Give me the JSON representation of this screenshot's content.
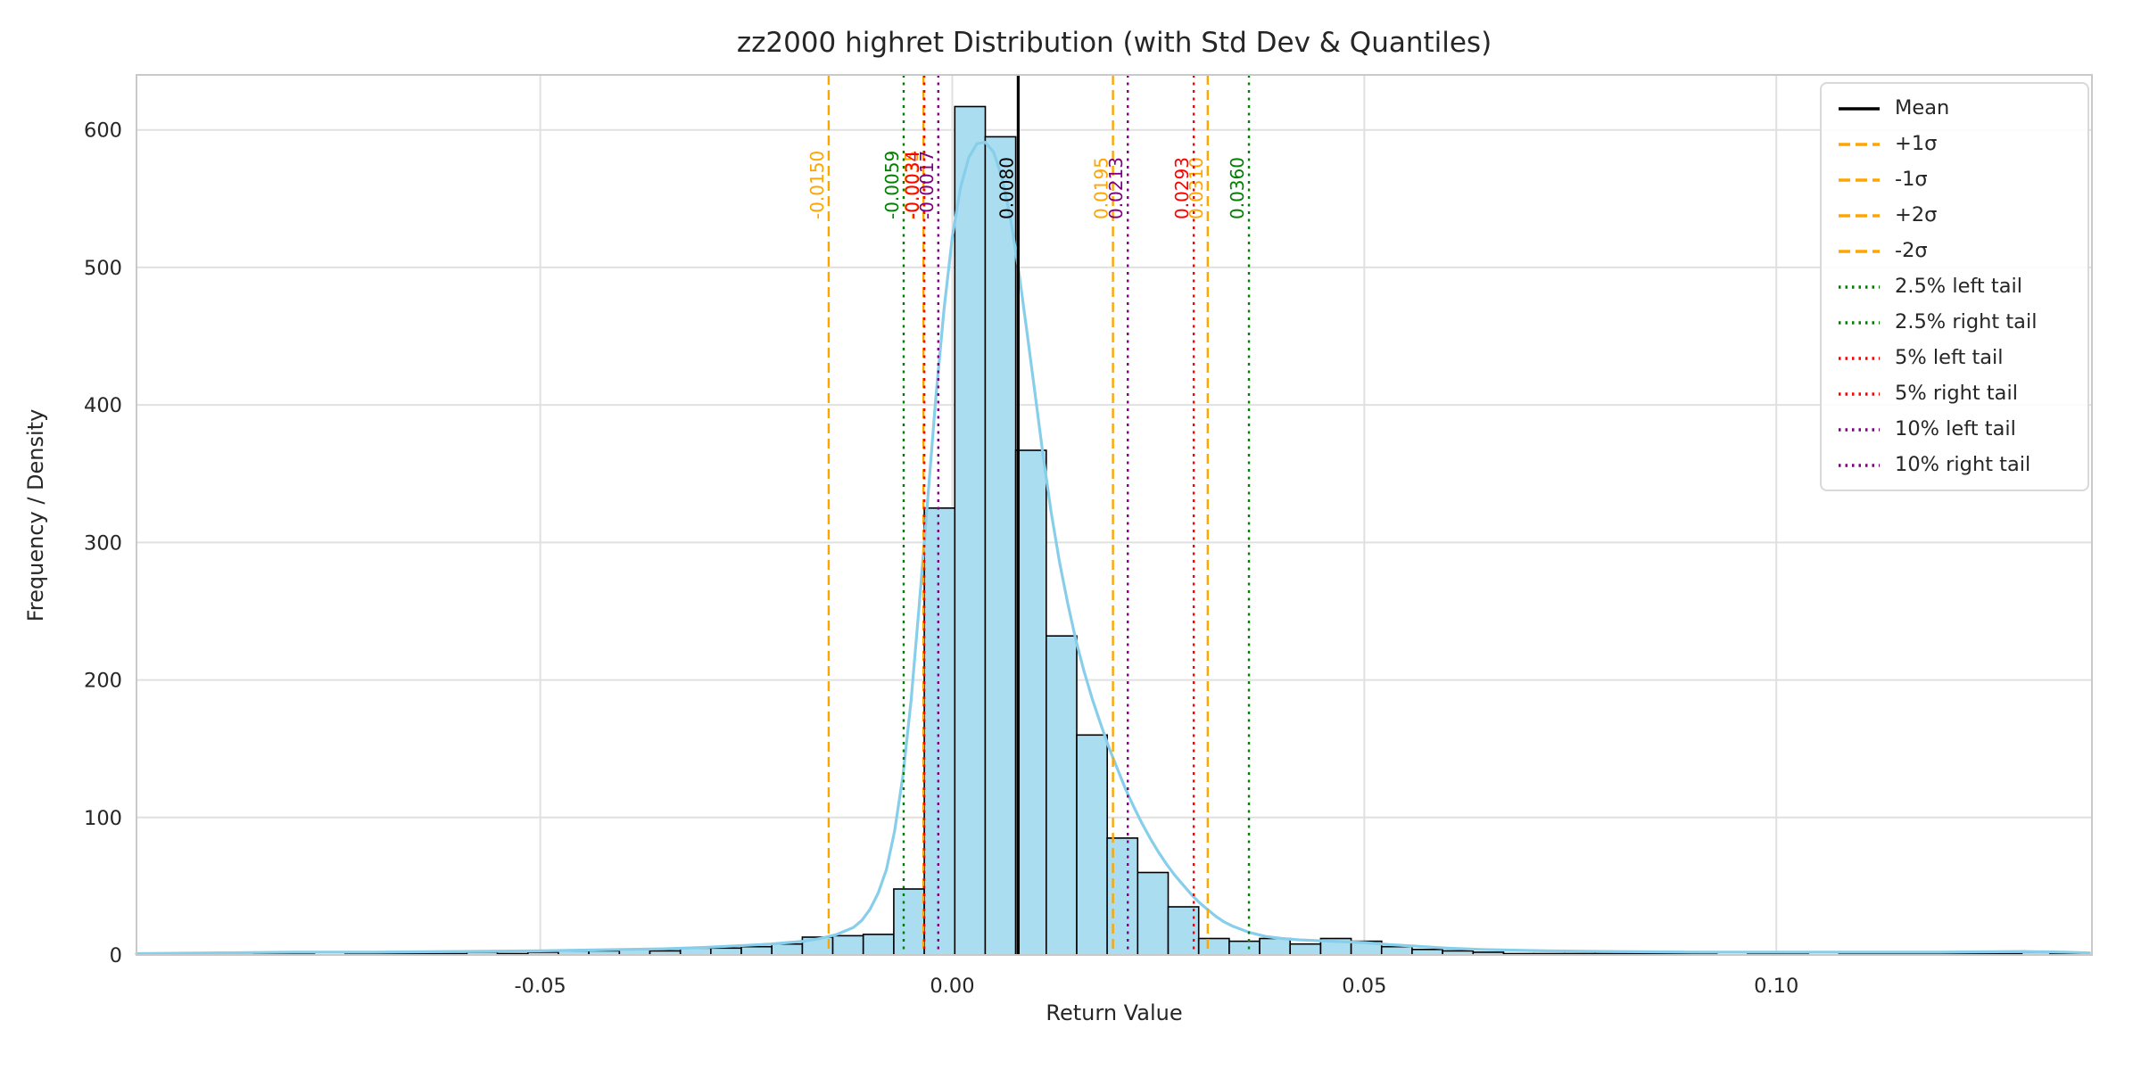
{
  "chart_data": {
    "type": "histogram+kde",
    "title": "zz2000 highret Distribution (with Std Dev & Quantiles)",
    "xlabel": "Return Value",
    "ylabel": "Frequency / Density",
    "grid": true,
    "legend_position": "upper right",
    "xlim": [
      -0.099,
      0.1383
    ],
    "ylim": [
      0,
      640
    ],
    "x_ticks": {
      "values": [
        -0.05,
        0.0,
        0.05,
        0.1
      ],
      "labels": [
        "-0.05",
        "0.00",
        "0.05",
        "0.10"
      ]
    },
    "y_ticks": [
      0,
      100,
      200,
      300,
      400,
      500,
      600
    ],
    "bin_width": 0.0037,
    "histogram": [
      [
        -0.0885,
        2
      ],
      [
        -0.0848,
        1
      ],
      [
        -0.0811,
        1
      ],
      [
        -0.0774,
        0
      ],
      [
        -0.0737,
        1
      ],
      [
        -0.07,
        1
      ],
      [
        -0.0663,
        1
      ],
      [
        -0.0626,
        1
      ],
      [
        -0.0589,
        2
      ],
      [
        -0.0552,
        1
      ],
      [
        -0.0515,
        2
      ],
      [
        -0.0478,
        3
      ],
      [
        -0.0441,
        3
      ],
      [
        -0.0404,
        4
      ],
      [
        -0.0367,
        3
      ],
      [
        -0.033,
        5
      ],
      [
        -0.0293,
        5
      ],
      [
        -0.0256,
        6
      ],
      [
        -0.0219,
        8
      ],
      [
        -0.0182,
        13
      ],
      [
        -0.0145,
        14
      ],
      [
        -0.0108,
        15
      ],
      [
        -0.0071,
        48
      ],
      [
        -0.0034,
        325
      ],
      [
        0.0003,
        617
      ],
      [
        0.004,
        595
      ],
      [
        0.0077,
        367
      ],
      [
        0.0114,
        232
      ],
      [
        0.0151,
        160
      ],
      [
        0.0188,
        85
      ],
      [
        0.0225,
        60
      ],
      [
        0.0262,
        35
      ],
      [
        0.0299,
        12
      ],
      [
        0.0336,
        10
      ],
      [
        0.0373,
        12
      ],
      [
        0.041,
        8
      ],
      [
        0.0447,
        12
      ],
      [
        0.0484,
        10
      ],
      [
        0.0521,
        6
      ],
      [
        0.0558,
        4
      ],
      [
        0.0595,
        3
      ],
      [
        0.0632,
        2
      ],
      [
        0.0669,
        1
      ],
      [
        0.0706,
        1
      ],
      [
        0.0743,
        1
      ],
      [
        0.078,
        1
      ],
      [
        0.0817,
        1
      ],
      [
        0.0854,
        1
      ],
      [
        0.0891,
        1
      ],
      [
        0.0928,
        0
      ],
      [
        0.0965,
        1
      ],
      [
        0.1002,
        1
      ],
      [
        0.1039,
        0
      ],
      [
        0.1076,
        1
      ],
      [
        0.1113,
        1
      ],
      [
        0.115,
        1
      ],
      [
        0.1187,
        1
      ],
      [
        0.1224,
        1
      ],
      [
        0.1261,
        1
      ],
      [
        0.1298,
        2
      ],
      [
        0.1332,
        1
      ]
    ],
    "kde": [
      [
        -0.099,
        1
      ],
      [
        -0.09,
        1.5
      ],
      [
        -0.08,
        2
      ],
      [
        -0.07,
        2
      ],
      [
        -0.06,
        2.5
      ],
      [
        -0.05,
        3
      ],
      [
        -0.045,
        3.5
      ],
      [
        -0.04,
        4
      ],
      [
        -0.035,
        4.5
      ],
      [
        -0.03,
        5.5
      ],
      [
        -0.025,
        7
      ],
      [
        -0.022,
        8
      ],
      [
        -0.02,
        9
      ],
      [
        -0.018,
        10
      ],
      [
        -0.016,
        12
      ],
      [
        -0.014,
        15
      ],
      [
        -0.012,
        20
      ],
      [
        -0.011,
        25
      ],
      [
        -0.01,
        33
      ],
      [
        -0.009,
        45
      ],
      [
        -0.008,
        62
      ],
      [
        -0.007,
        90
      ],
      [
        -0.006,
        130
      ],
      [
        -0.005,
        185
      ],
      [
        -0.004,
        255
      ],
      [
        -0.003,
        330
      ],
      [
        -0.002,
        405
      ],
      [
        -0.001,
        470
      ],
      [
        0.0,
        522
      ],
      [
        0.001,
        558
      ],
      [
        0.002,
        580
      ],
      [
        0.003,
        590
      ],
      [
        0.004,
        591
      ],
      [
        0.005,
        584
      ],
      [
        0.006,
        566
      ],
      [
        0.007,
        538
      ],
      [
        0.008,
        500
      ],
      [
        0.009,
        456
      ],
      [
        0.01,
        410
      ],
      [
        0.011,
        364
      ],
      [
        0.012,
        322
      ],
      [
        0.013,
        286
      ],
      [
        0.014,
        256
      ],
      [
        0.015,
        229
      ],
      [
        0.016,
        206
      ],
      [
        0.017,
        186
      ],
      [
        0.018,
        168
      ],
      [
        0.019,
        151
      ],
      [
        0.02,
        136
      ],
      [
        0.021,
        121
      ],
      [
        0.022,
        108
      ],
      [
        0.023,
        96
      ],
      [
        0.024,
        85
      ],
      [
        0.025,
        75
      ],
      [
        0.026,
        66
      ],
      [
        0.027,
        58
      ],
      [
        0.028,
        51
      ],
      [
        0.029,
        44
      ],
      [
        0.03,
        38
      ],
      [
        0.031,
        33
      ],
      [
        0.032,
        28
      ],
      [
        0.033,
        24
      ],
      [
        0.034,
        21
      ],
      [
        0.036,
        16.5
      ],
      [
        0.038,
        13.5
      ],
      [
        0.04,
        12
      ],
      [
        0.042,
        11
      ],
      [
        0.044,
        10.5
      ],
      [
        0.046,
        10
      ],
      [
        0.048,
        9.5
      ],
      [
        0.05,
        9
      ],
      [
        0.053,
        7.5
      ],
      [
        0.056,
        6.5
      ],
      [
        0.06,
        5
      ],
      [
        0.064,
        4
      ],
      [
        0.068,
        3.5
      ],
      [
        0.072,
        3
      ],
      [
        0.08,
        2.5
      ],
      [
        0.09,
        2
      ],
      [
        0.1,
        2
      ],
      [
        0.11,
        2
      ],
      [
        0.12,
        2
      ],
      [
        0.13,
        2.5
      ],
      [
        0.135,
        2
      ],
      [
        0.138,
        1.5
      ]
    ],
    "vlines": [
      {
        "key": "mean",
        "name": "Mean",
        "label": "0.0080",
        "value": 0.008,
        "color": "#000000",
        "dash": "solid"
      },
      {
        "key": "plus-1-sigma",
        "name": "+1σ",
        "label": "0.0195",
        "value": 0.0195,
        "color": "#FFA500",
        "dash": "dashed"
      },
      {
        "key": "minus-1-sigma",
        "name": "-1σ",
        "label": "-0.0035",
        "value": -0.0035,
        "color": "#FFA500",
        "dash": "dashed"
      },
      {
        "key": "plus-2-sigma",
        "name": "+2σ",
        "label": "0.0310",
        "value": 0.031,
        "color": "#FFA500",
        "dash": "dashed"
      },
      {
        "key": "minus-2-sigma",
        "name": "-2σ",
        "label": "-0.0150",
        "value": -0.015,
        "color": "#FFA500",
        "dash": "dashed"
      },
      {
        "key": "q2-5-left",
        "name": "2.5% left tail",
        "label": "-0.0059",
        "value": -0.0059,
        "color": "#008000",
        "dash": "dotted"
      },
      {
        "key": "q2-5-right",
        "name": "2.5% right tail",
        "label": "0.0360",
        "value": 0.036,
        "color": "#008000",
        "dash": "dotted"
      },
      {
        "key": "q5-left",
        "name": "5% left tail",
        "label": "-0.0034",
        "value": -0.0034,
        "color": "#FF0000",
        "dash": "dotted"
      },
      {
        "key": "q5-right",
        "name": "5% right tail",
        "label": "0.0293",
        "value": 0.0293,
        "color": "#FF0000",
        "dash": "dotted"
      },
      {
        "key": "q10-left",
        "name": "10% left tail",
        "label": "-0.0017",
        "value": -0.0017,
        "color": "#800080",
        "dash": "dotted"
      },
      {
        "key": "q10-right",
        "name": "10% right tail",
        "label": "0.0213",
        "value": 0.0213,
        "color": "#800080",
        "dash": "dotted"
      }
    ],
    "legend": [
      {
        "label": "Mean",
        "color": "#000000",
        "dash": "solid"
      },
      {
        "label": "+1σ",
        "color": "#FFA500",
        "dash": "dashed"
      },
      {
        "label": "-1σ",
        "color": "#FFA500",
        "dash": "dashed"
      },
      {
        "label": "+2σ",
        "color": "#FFA500",
        "dash": "dashed"
      },
      {
        "label": "-2σ",
        "color": "#FFA500",
        "dash": "dashed"
      },
      {
        "label": "2.5% left tail",
        "color": "#008000",
        "dash": "dotted"
      },
      {
        "label": "2.5% right tail",
        "color": "#008000",
        "dash": "dotted"
      },
      {
        "label": "5% left tail",
        "color": "#FF0000",
        "dash": "dotted"
      },
      {
        "label": "5% right tail",
        "color": "#FF0000",
        "dash": "dotted"
      },
      {
        "label": "10% left tail",
        "color": "#800080",
        "dash": "dotted"
      },
      {
        "label": "10% right tail",
        "color": "#800080",
        "dash": "dotted"
      }
    ],
    "colors": {
      "bar_fill": "#ABDDF1",
      "bar_edge": "#000000",
      "kde": "#87CEEB",
      "grid": "#E0E0E0",
      "spine": "#C9C9C9",
      "tick": "#262626"
    }
  }
}
